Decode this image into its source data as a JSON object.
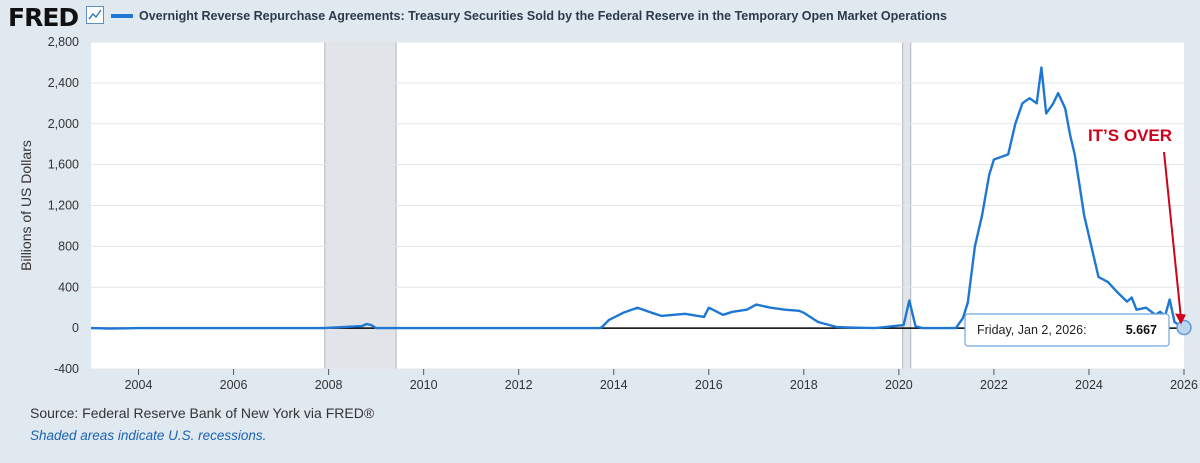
{
  "brand": {
    "logo_text": "FRED",
    "logo_icon": "line-chart-icon"
  },
  "colors": {
    "series": "#1f77d4",
    "recession": "#e1e5ea",
    "annotation": "#d0021b",
    "plot_bg": "#ffffff",
    "page_bg": "#e1e9f0"
  },
  "chart_data": {
    "type": "line",
    "title": "Overnight Reverse Repurchase Agreements: Treasury Securities Sold by the Federal Reserve in the Temporary Open Market Operations",
    "ylabel": "Billions of US Dollars",
    "xlabel": "",
    "xlim": [
      2003.0,
      2026.0
    ],
    "ylim": [
      -400,
      2800
    ],
    "x_ticks": [
      "2004",
      "2006",
      "2008",
      "2010",
      "2012",
      "2014",
      "2016",
      "2018",
      "2020",
      "2022",
      "2024",
      "2026"
    ],
    "y_ticks": [
      "2,800",
      "2,400",
      "2,000",
      "1,600",
      "1,200",
      "800",
      "400",
      "0",
      "-400"
    ],
    "grid": "horizontal",
    "recessions": [
      [
        2007.92,
        2009.42
      ],
      [
        2020.08,
        2020.25
      ]
    ],
    "series": [
      {
        "name": "Overnight Reverse Repurchase Agreements",
        "points": [
          [
            2003.0,
            0
          ],
          [
            2003.4,
            -5
          ],
          [
            2004.0,
            0
          ],
          [
            2007.9,
            0
          ],
          [
            2008.7,
            20
          ],
          [
            2008.8,
            40
          ],
          [
            2008.9,
            30
          ],
          [
            2009.0,
            0
          ],
          [
            2013.7,
            0
          ],
          [
            2013.75,
            10
          ],
          [
            2013.9,
            80
          ],
          [
            2014.2,
            150
          ],
          [
            2014.5,
            200
          ],
          [
            2014.8,
            150
          ],
          [
            2015.0,
            120
          ],
          [
            2015.5,
            140
          ],
          [
            2015.9,
            110
          ],
          [
            2016.0,
            200
          ],
          [
            2016.3,
            130
          ],
          [
            2016.5,
            160
          ],
          [
            2016.8,
            180
          ],
          [
            2017.0,
            230
          ],
          [
            2017.3,
            200
          ],
          [
            2017.6,
            180
          ],
          [
            2017.9,
            170
          ],
          [
            2018.0,
            150
          ],
          [
            2018.3,
            60
          ],
          [
            2018.7,
            10
          ],
          [
            2019.0,
            5
          ],
          [
            2019.5,
            0
          ],
          [
            2020.1,
            30
          ],
          [
            2020.22,
            270
          ],
          [
            2020.35,
            20
          ],
          [
            2020.5,
            0
          ],
          [
            2021.2,
            0
          ],
          [
            2021.35,
            100
          ],
          [
            2021.45,
            250
          ],
          [
            2021.6,
            800
          ],
          [
            2021.75,
            1100
          ],
          [
            2021.9,
            1500
          ],
          [
            2022.0,
            1650
          ],
          [
            2022.3,
            1700
          ],
          [
            2022.45,
            2000
          ],
          [
            2022.6,
            2200
          ],
          [
            2022.75,
            2250
          ],
          [
            2022.9,
            2200
          ],
          [
            2023.0,
            2550
          ],
          [
            2023.1,
            2100
          ],
          [
            2023.25,
            2200
          ],
          [
            2023.35,
            2300
          ],
          [
            2023.5,
            2150
          ],
          [
            2023.6,
            1900
          ],
          [
            2023.7,
            1700
          ],
          [
            2023.8,
            1400
          ],
          [
            2023.9,
            1100
          ],
          [
            2024.0,
            900
          ],
          [
            2024.2,
            500
          ],
          [
            2024.4,
            450
          ],
          [
            2024.6,
            350
          ],
          [
            2024.8,
            260
          ],
          [
            2024.9,
            300
          ],
          [
            2025.0,
            180
          ],
          [
            2025.2,
            200
          ],
          [
            2025.4,
            130
          ],
          [
            2025.5,
            160
          ],
          [
            2025.6,
            120
          ],
          [
            2025.7,
            280
          ],
          [
            2025.8,
            60
          ],
          [
            2025.9,
            30
          ],
          [
            2026.0,
            5.667
          ]
        ]
      }
    ],
    "annotations": [
      {
        "text": "IT’S OVER"
      }
    ],
    "tooltip": {
      "date": "Friday, Jan 2, 2026:",
      "value": "5.667"
    }
  },
  "footer": {
    "source": "Source: Federal Reserve Bank of New York via FRED®",
    "note": "Shaded areas indicate U.S. recessions."
  }
}
